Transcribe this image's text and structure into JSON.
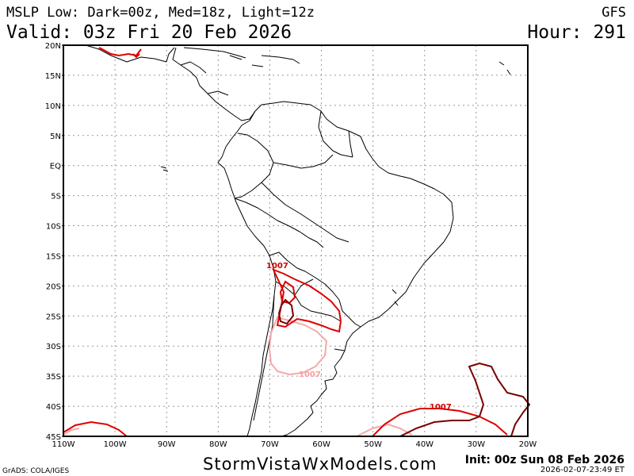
{
  "header": {
    "line1_left": "MSLP Low: Dark=00z, Med=18z, Light=12z",
    "line1_right": "GFS",
    "line2_left": "Valid: 03z Fri 20 Feb 2026",
    "line2_right": "Hour: 291"
  },
  "footer": {
    "site": "StormVistaWxModels.com",
    "init": "Init: 00z Sun 08 Feb 2026",
    "timestamp": "2026-02-07-23:49 ET",
    "credit": "GrADS: COLA/IGES"
  },
  "map": {
    "lat_labels": [
      "20N",
      "15N",
      "10N",
      "5N",
      "EQ",
      "5S",
      "10S",
      "15S",
      "20S",
      "25S",
      "30S",
      "35S",
      "40S",
      "45S"
    ],
    "lon_labels": [
      "110W",
      "100W",
      "90W",
      "80W",
      "70W",
      "60W",
      "50W",
      "40W",
      "30W",
      "20W"
    ],
    "contour_labels": [
      {
        "text": "1007",
        "color": "#d00000"
      },
      {
        "text": "1007",
        "color": "#f4a0a0"
      },
      {
        "text": "1007",
        "color": "#d00000"
      }
    ],
    "colors": {
      "dark": "#7a0000",
      "medium": "#e00000",
      "light": "#f6a8a8",
      "coast": "#000000",
      "grid": "#999999"
    }
  }
}
